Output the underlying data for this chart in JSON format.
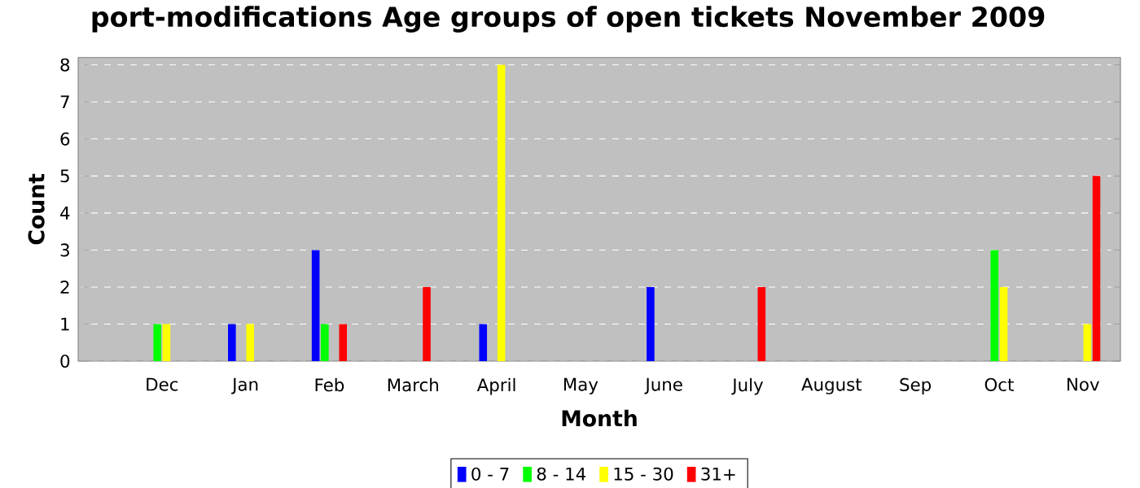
{
  "chart_data": {
    "type": "bar",
    "title": "port-modifications Age groups of open tickets November 2009",
    "xlabel": "Month",
    "ylabel": "Count",
    "categories": [
      "Dec",
      "Jan",
      "Feb",
      "March",
      "April",
      "May",
      "June",
      "July",
      "August",
      "Sep",
      "Oct",
      "Nov"
    ],
    "series": [
      {
        "name": "0 - 7",
        "color": "#0000ff",
        "values": [
          0,
          1,
          3,
          0,
          1,
          0,
          2,
          0,
          0,
          0,
          0,
          0
        ]
      },
      {
        "name": "8 - 14",
        "color": "#00ff00",
        "values": [
          1,
          0,
          1,
          0,
          0,
          0,
          0,
          0,
          0,
          0,
          3,
          0
        ]
      },
      {
        "name": "15 - 30",
        "color": "#ffff00",
        "values": [
          1,
          1,
          0,
          0,
          8,
          0,
          0,
          0,
          0,
          0,
          2,
          1
        ]
      },
      {
        "name": "31+",
        "color": "#ff0000",
        "values": [
          0,
          0,
          1,
          2,
          0,
          0,
          0,
          2,
          0,
          0,
          0,
          5
        ]
      }
    ],
    "ylim": [
      0,
      8.2
    ],
    "yticks": [
      0,
      1,
      2,
      3,
      4,
      5,
      6,
      7,
      8
    ],
    "grid": "y",
    "legend": "bottom"
  }
}
